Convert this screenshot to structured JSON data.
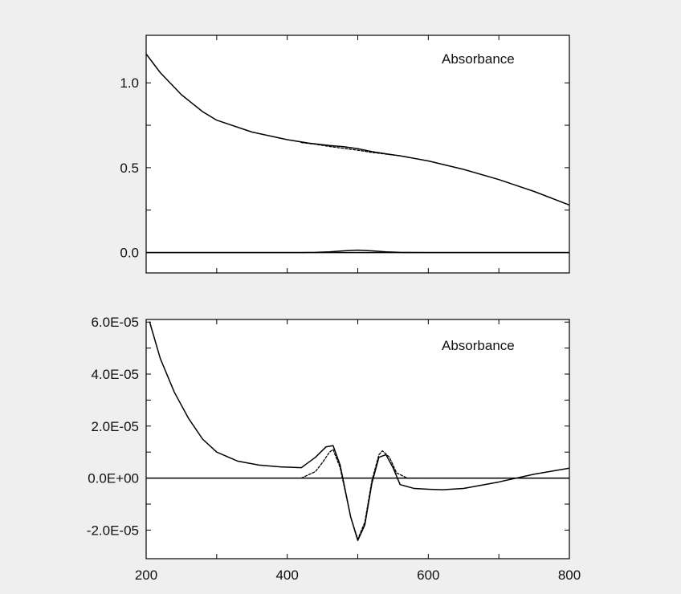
{
  "colors": {
    "page_background": "#efefef",
    "plot_background": "#ffffff",
    "ink": "#000000"
  },
  "chart_data": [
    {
      "type": "line",
      "title": "",
      "annotation": "Absorbance",
      "xlabel": "",
      "ylabel": "",
      "xlim": [
        200,
        800
      ],
      "ylim": [
        -0.12,
        1.28
      ],
      "x_ticks_major": [
        200,
        400,
        600,
        800
      ],
      "x_ticks_minor": [
        300,
        500,
        700
      ],
      "x_tick_labels_shown": false,
      "y_ticks": [
        0.0,
        0.5,
        1.0
      ],
      "y_tick_labels": [
        "0.0",
        "0.5",
        "1.0"
      ],
      "y_ticks_minor": [
        0.25,
        0.75
      ],
      "grid": false,
      "series": [
        {
          "style": "solid",
          "x": [
            200,
            220,
            250,
            280,
            300,
            350,
            400,
            430,
            460,
            480,
            500,
            520,
            540,
            560,
            600,
            650,
            700,
            750,
            800
          ],
          "y": [
            1.17,
            1.06,
            0.93,
            0.83,
            0.78,
            0.71,
            0.665,
            0.645,
            0.631,
            0.624,
            0.612,
            0.595,
            0.582,
            0.57,
            0.54,
            0.49,
            0.43,
            0.36,
            0.28
          ]
        },
        {
          "style": "dashed",
          "x": [
            420,
            440,
            460,
            480,
            500,
            520,
            540,
            560
          ],
          "y": [
            0.648,
            0.638,
            0.625,
            0.614,
            0.603,
            0.59,
            0.58,
            0.57
          ]
        },
        {
          "style": "solid",
          "x": [
            200,
            420,
            440,
            460,
            480,
            500,
            520,
            540,
            560,
            600,
            800
          ],
          "y": [
            0.0,
            0.0,
            0.001,
            0.004,
            0.01,
            0.014,
            0.01,
            0.004,
            0.001,
            0.0,
            0.0
          ]
        },
        {
          "style": "solid",
          "x": [
            200,
            800
          ],
          "y": [
            0.0,
            0.0
          ]
        }
      ]
    },
    {
      "type": "line",
      "title": "",
      "annotation": "Absorbance",
      "xlabel": "",
      "ylabel": "",
      "xlim": [
        200,
        800
      ],
      "ylim": [
        -3.1e-05,
        6.1e-05
      ],
      "x_ticks_major": [
        200,
        400,
        600,
        800
      ],
      "x_tick_labels": [
        "200",
        "400",
        "600",
        "800"
      ],
      "x_ticks_minor": [
        300,
        500,
        700
      ],
      "y_ticks": [
        -2e-05,
        0,
        2e-05,
        4e-05,
        6e-05
      ],
      "y_tick_labels": [
        "-2.0E-05",
        "0.0E+00",
        "2.0E-05",
        "4.0E-05",
        "6.0E-05"
      ],
      "y_ticks_minor": [
        -1e-05,
        1e-05,
        3e-05,
        5e-05
      ],
      "grid": false,
      "series": [
        {
          "style": "solid",
          "x": [
            205,
            220,
            240,
            260,
            280,
            300,
            330,
            360,
            390,
            420,
            440,
            455,
            465,
            475,
            490,
            500,
            510,
            520,
            530,
            540,
            550,
            560,
            580,
            600,
            620,
            650,
            700,
            750,
            800
          ],
          "y": [
            6e-05,
            4.6e-05,
            3.3e-05,
            2.3e-05,
            1.5e-05,
            1e-05,
            6.5e-06,
            5e-06,
            4.3e-06,
            4e-06,
            8e-06,
            1.2e-05,
            1.25e-05,
            5e-06,
            -1.5e-05,
            -2.4e-05,
            -1.8e-05,
            -2e-06,
            8e-06,
            9e-06,
            4e-06,
            -2.5e-06,
            -4e-06,
            -4.3e-06,
            -4.5e-06,
            -4e-06,
            -1.5e-06,
            1.5e-06,
            3.8e-06
          ]
        },
        {
          "style": "dashed",
          "x": [
            420,
            440,
            450,
            460,
            465,
            475,
            490,
            500,
            510,
            520,
            530,
            535,
            545,
            555,
            570,
            800
          ],
          "y": [
            0,
            2.5e-06,
            6e-06,
            1e-05,
            1.1e-05,
            4e-06,
            -1.5e-05,
            -2.35e-05,
            -1.7e-05,
            -1e-06,
            9e-06,
            1.05e-05,
            8e-06,
            2e-06,
            0,
            0
          ]
        },
        {
          "style": "solid",
          "x": [
            200,
            800
          ],
          "y": [
            0,
            0
          ]
        }
      ]
    }
  ]
}
